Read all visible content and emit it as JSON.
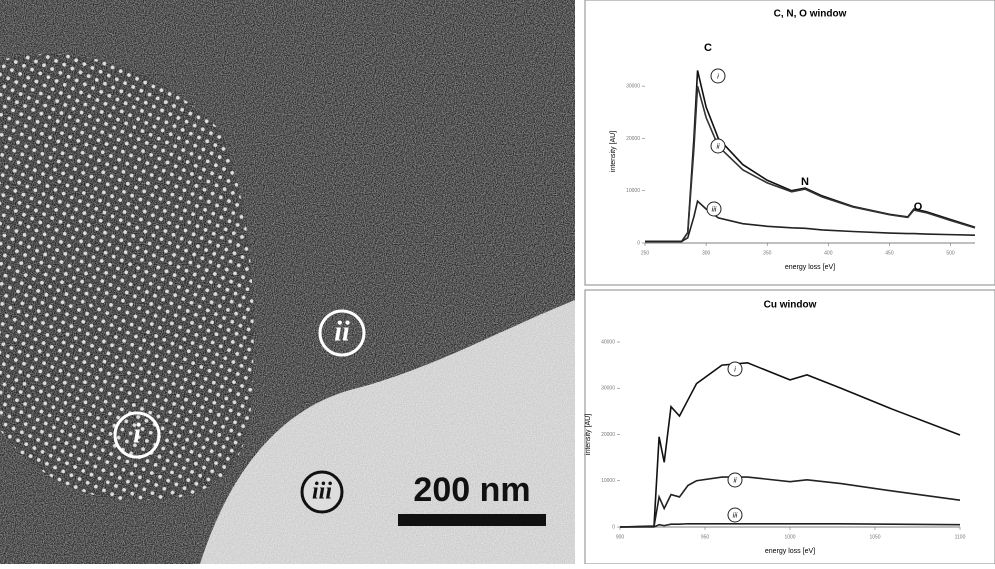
{
  "image": {
    "labels": [
      "i",
      "ii",
      "iii"
    ],
    "scale_bar": "200 nm"
  },
  "chart_data": [
    {
      "type": "line",
      "title": "C, N, O window",
      "xlabel": "energy loss [eV]",
      "ylabel": "intensity [AU]",
      "x": [
        250,
        280,
        285,
        290,
        293,
        300,
        310,
        330,
        350,
        370,
        381,
        395,
        420,
        450,
        465,
        470,
        480,
        500,
        520
      ],
      "series": [
        {
          "name": "i",
          "color": "#111111",
          "values": [
            300,
            300,
            2000,
            20000,
            33000,
            26000,
            20000,
            15000,
            12000,
            10000,
            10500,
            9000,
            7000,
            5500,
            5000,
            6500,
            6000,
            4500,
            3000
          ]
        },
        {
          "name": "ii",
          "color": "#333333",
          "values": [
            300,
            300,
            2000,
            18000,
            30000,
            24000,
            18500,
            14000,
            11500,
            9800,
            10300,
            8800,
            6900,
            5400,
            4900,
            6300,
            5800,
            4300,
            2900
          ]
        },
        {
          "name": "iii",
          "color": "#222222",
          "values": [
            300,
            300,
            1000,
            5000,
            8000,
            6500,
            4800,
            3700,
            3200,
            2900,
            2800,
            2500,
            2200,
            1900,
            1800,
            1800,
            1700,
            1600,
            1500
          ]
        }
      ],
      "annotations": [
        "C",
        "N",
        "O"
      ],
      "xlim": [
        250,
        520
      ],
      "xticks": [
        250,
        300,
        350,
        400,
        450,
        500
      ],
      "ylim": [
        0,
        35000
      ],
      "yticks": [
        0,
        10000,
        20000,
        30000
      ]
    },
    {
      "type": "line",
      "title": "Cu window",
      "xlabel": "energy loss [eV]",
      "ylabel": "intensity [AU]",
      "x": [
        900,
        920,
        923,
        926,
        930,
        935,
        940,
        945,
        960,
        975,
        1000,
        1010,
        1030,
        1060,
        1100
      ],
      "series": [
        {
          "name": "i",
          "color": "#111111",
          "values": [
            0,
            200,
            19500,
            14000,
            26000,
            24000,
            27500,
            31000,
            35000,
            35500,
            31800,
            32900,
            30000,
            25500,
            19900
          ]
        },
        {
          "name": "ii",
          "color": "#222222",
          "values": [
            0,
            100,
            6500,
            4000,
            7000,
            6500,
            9000,
            10000,
            10800,
            10800,
            9800,
            10200,
            9400,
            7800,
            5800
          ]
        },
        {
          "name": "iii",
          "color": "#222222",
          "values": [
            0,
            0,
            500,
            300,
            600,
            600,
            700,
            700,
            700,
            700,
            700,
            700,
            700,
            600,
            500
          ]
        }
      ],
      "xlim": [
        900,
        1100
      ],
      "xticks": [
        900,
        950,
        1000,
        1050,
        1100
      ],
      "ylim": [
        0,
        40000
      ],
      "yticks": [
        0,
        10000,
        20000,
        30000,
        40000
      ]
    }
  ]
}
